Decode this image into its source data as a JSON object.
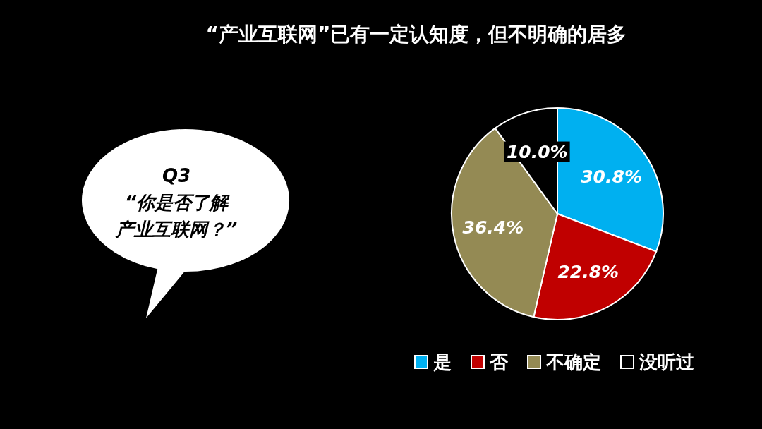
{
  "chart_data": {
    "type": "pie",
    "title": "“产业互联网”已有一定认知度，但不明确的居多",
    "categories": [
      "是",
      "否",
      "不确定",
      "没听过"
    ],
    "values": [
      30.8,
      22.8,
      36.4,
      10.0
    ],
    "value_labels": [
      "30.8%",
      "22.8%",
      "36.4%",
      "10.0%"
    ],
    "colors": [
      "#00b0f0",
      "#c00000",
      "#948a54",
      "#000000"
    ],
    "legend": "bottom",
    "annotations": [
      "Q3",
      "“你是否了解",
      "产业互联网？”"
    ]
  }
}
